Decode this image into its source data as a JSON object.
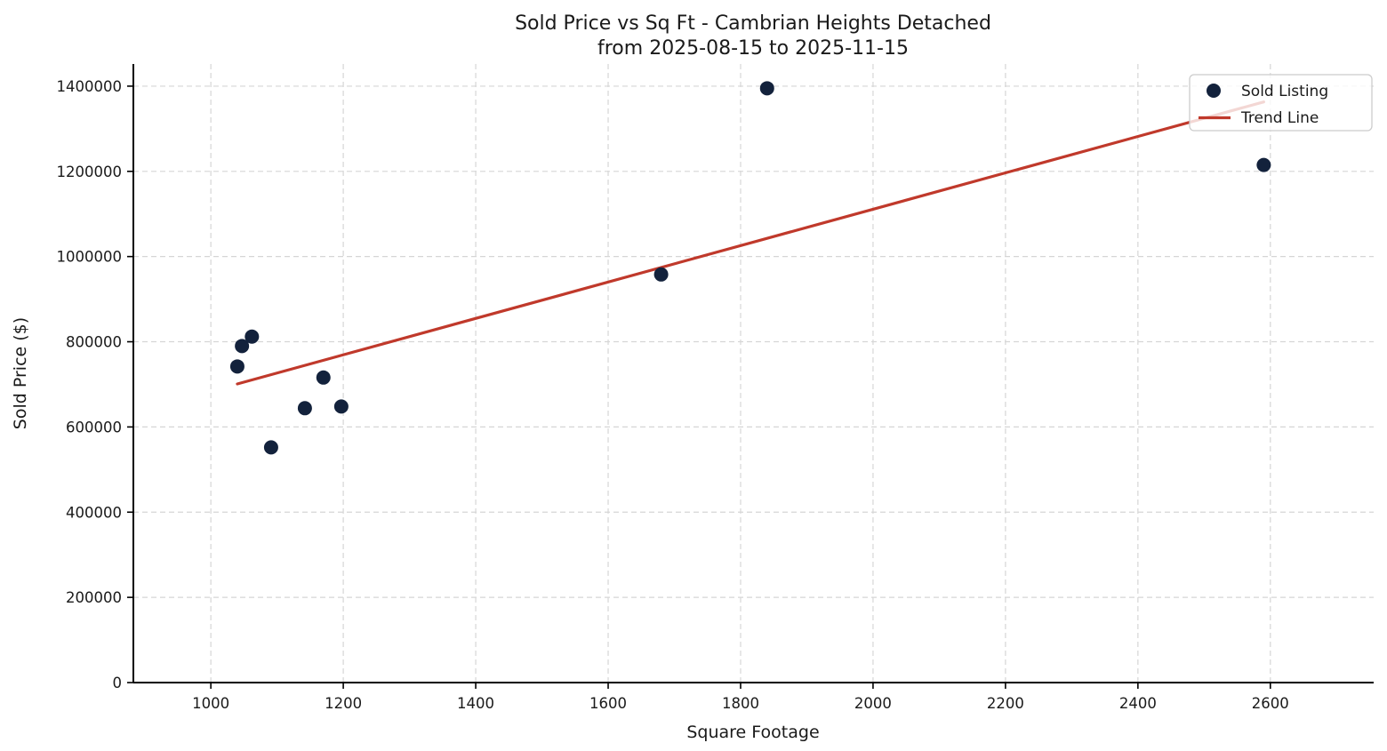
{
  "colors": {
    "point": "#13223c",
    "trend": "#c0392b",
    "grid": "#d6d6d6",
    "axis": "#000000",
    "text": "#1a1a1a",
    "legend_border": "#cccccc",
    "legend_bg_alpha": 0.8
  },
  "chart_data": {
    "type": "scatter",
    "title": "Sold Price vs Sq Ft - Cambrian Heights Detached",
    "subtitle": "from 2025-08-15 to 2025-11-15",
    "xlabel": "Square Footage",
    "ylabel": "Sold Price ($)",
    "xlim": [
      883,
      2756
    ],
    "ylim": [
      0,
      1452000
    ],
    "xticks": [
      1000,
      1200,
      1400,
      1600,
      1800,
      2000,
      2200,
      2400,
      2600
    ],
    "yticks": [
      0,
      200000,
      400000,
      600000,
      800000,
      1000000,
      1200000,
      1400000
    ],
    "grid": true,
    "grid_style": "dashed",
    "legend_position": "upper right",
    "legend_entries": [
      "Sold Listing",
      "Trend Line"
    ],
    "series": [
      {
        "name": "Sold Listing",
        "type": "scatter",
        "marker": "circle",
        "points": [
          [
            1840,
            1395000
          ],
          [
            2590,
            1215000
          ],
          [
            1680,
            958000
          ],
          [
            1062,
            812000
          ],
          [
            1047,
            790000
          ],
          [
            1040,
            742000
          ],
          [
            1170,
            716000
          ],
          [
            1197,
            648000
          ],
          [
            1142,
            644000
          ],
          [
            1091,
            552000
          ]
        ]
      },
      {
        "name": "Trend Line",
        "type": "line",
        "points": [
          [
            1040,
            701000
          ],
          [
            2590,
            1363000
          ]
        ]
      }
    ]
  }
}
